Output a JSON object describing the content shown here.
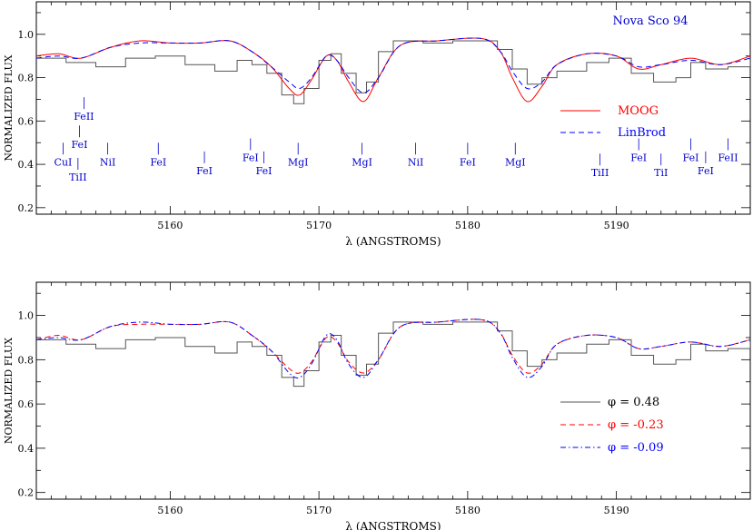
{
  "chart_data": [
    {
      "type": "line",
      "title": "Nova Sco 94",
      "xlabel": "λ (ANGSTROMS)",
      "ylabel": "NORMALIZED FLUX",
      "xlim": [
        5151,
        5199
      ],
      "ylim": [
        0.17,
        1.15
      ],
      "xticks": [
        5160,
        5170,
        5180,
        5190
      ],
      "yticks": [
        0.2,
        0.4,
        0.6,
        0.8,
        1.0
      ],
      "xtick_labels": [
        "5160",
        "5170",
        "5180",
        "5190"
      ],
      "ytick_labels": [
        "0.2",
        "0.4",
        "0.6",
        "0.8",
        "1.0"
      ],
      "legend_position": "right",
      "series": [
        {
          "name": "",
          "color": "#555555",
          "style": "step",
          "x": [
            5151,
            5153,
            5155,
            5157,
            5159,
            5161,
            5163,
            5164.5,
            5165.5,
            5166.5,
            5167.5,
            5168.3,
            5169,
            5170,
            5170.8,
            5171.5,
            5172.5,
            5173.2,
            5174,
            5175,
            5177,
            5179,
            5181,
            5182,
            5183,
            5184,
            5185,
            5186,
            5188,
            5189.5,
            5191,
            5192.5,
            5194,
            5195,
            5196,
            5197.5,
            5199
          ],
          "y": [
            0.89,
            0.87,
            0.85,
            0.89,
            0.9,
            0.86,
            0.83,
            0.88,
            0.86,
            0.82,
            0.72,
            0.68,
            0.75,
            0.88,
            0.91,
            0.82,
            0.73,
            0.78,
            0.92,
            0.97,
            0.96,
            0.97,
            0.97,
            0.93,
            0.84,
            0.77,
            0.8,
            0.83,
            0.87,
            0.89,
            0.82,
            0.78,
            0.8,
            0.87,
            0.84,
            0.85,
            0.88
          ]
        },
        {
          "name": "MOOG",
          "color": "#ff0000",
          "style": "solid",
          "x": [
            5151,
            5152.5,
            5154,
            5156,
            5158,
            5160,
            5162,
            5164,
            5165.5,
            5166.8,
            5168,
            5168.7,
            5169.5,
            5170.5,
            5171.2,
            5172,
            5173,
            5174,
            5175.5,
            5178,
            5181,
            5182.2,
            5183,
            5184,
            5185,
            5186,
            5188,
            5190,
            5191.5,
            5193,
            5195,
            5197,
            5199
          ],
          "y": [
            0.9,
            0.91,
            0.89,
            0.94,
            0.97,
            0.96,
            0.96,
            0.97,
            0.92,
            0.85,
            0.75,
            0.72,
            0.79,
            0.9,
            0.88,
            0.78,
            0.69,
            0.8,
            0.95,
            0.97,
            0.98,
            0.92,
            0.8,
            0.69,
            0.76,
            0.86,
            0.91,
            0.9,
            0.84,
            0.86,
            0.89,
            0.86,
            0.9
          ]
        },
        {
          "name": "LinBrod",
          "color": "#0000ff",
          "style": "dashed",
          "x": [
            5151,
            5152.5,
            5154,
            5156,
            5158,
            5160,
            5162,
            5164,
            5165.5,
            5166.8,
            5168,
            5168.7,
            5169.5,
            5170.5,
            5171.2,
            5172,
            5173,
            5174,
            5175.5,
            5178,
            5181,
            5182.2,
            5183,
            5184,
            5185,
            5186,
            5188,
            5190,
            5191.5,
            5193,
            5195,
            5197,
            5199
          ],
          "y": [
            0.89,
            0.9,
            0.89,
            0.94,
            0.96,
            0.96,
            0.96,
            0.97,
            0.92,
            0.85,
            0.78,
            0.75,
            0.8,
            0.9,
            0.88,
            0.8,
            0.73,
            0.8,
            0.95,
            0.97,
            0.98,
            0.92,
            0.83,
            0.75,
            0.78,
            0.86,
            0.91,
            0.9,
            0.85,
            0.86,
            0.88,
            0.86,
            0.89
          ]
        }
      ],
      "annotations": [
        {
          "text": "FeII",
          "x": 5154.2,
          "y": 0.63
        },
        {
          "text": "FeI",
          "x": 5153.9,
          "y": 0.5
        },
        {
          "text": "CuI",
          "x": 5152.8,
          "y": 0.42
        },
        {
          "text": "TiII",
          "x": 5153.8,
          "y": 0.35
        },
        {
          "text": "NiI",
          "x": 5155.8,
          "y": 0.42
        },
        {
          "text": "FeI",
          "x": 5159.2,
          "y": 0.42
        },
        {
          "text": "FeI",
          "x": 5162.3,
          "y": 0.38
        },
        {
          "text": "FeI",
          "x": 5165.4,
          "y": 0.44
        },
        {
          "text": "FeI",
          "x": 5166.3,
          "y": 0.38
        },
        {
          "text": "MgI",
          "x": 5168.6,
          "y": 0.42
        },
        {
          "text": "MgI",
          "x": 5172.9,
          "y": 0.42
        },
        {
          "text": "NiI",
          "x": 5176.5,
          "y": 0.42
        },
        {
          "text": "FeI",
          "x": 5180.0,
          "y": 0.42
        },
        {
          "text": "MgI",
          "x": 5183.2,
          "y": 0.42
        },
        {
          "text": "TiII",
          "x": 5188.9,
          "y": 0.37
        },
        {
          "text": "FeI",
          "x": 5191.5,
          "y": 0.44
        },
        {
          "text": "TiI",
          "x": 5193.0,
          "y": 0.37
        },
        {
          "text": "FeI",
          "x": 5195.0,
          "y": 0.44
        },
        {
          "text": "FeI",
          "x": 5196.0,
          "y": 0.38
        },
        {
          "text": "FeII",
          "x": 5197.5,
          "y": 0.44
        }
      ]
    },
    {
      "type": "line",
      "title": "",
      "xlabel": "λ (ANGSTROMS)",
      "ylabel": "NORMALIZED FLUX",
      "xlim": [
        5151,
        5199
      ],
      "ylim": [
        0.17,
        1.15
      ],
      "xticks": [
        5160,
        5170,
        5180,
        5190
      ],
      "yticks": [
        0.2,
        0.4,
        0.6,
        0.8,
        1.0
      ],
      "xtick_labels": [
        "5160",
        "5170",
        "5180",
        "5190"
      ],
      "ytick_labels": [
        "0.2",
        "0.4",
        "0.6",
        "0.8",
        "1.0"
      ],
      "legend_position": "bottom-right",
      "series": [
        {
          "name": "φ =  0.48",
          "color": "#555555",
          "style": "step",
          "x": [
            5151,
            5153,
            5155,
            5157,
            5159,
            5161,
            5163,
            5164.5,
            5165.5,
            5166.5,
            5167.5,
            5168.3,
            5169,
            5170,
            5170.8,
            5171.5,
            5172.5,
            5173.2,
            5174,
            5175,
            5177,
            5179,
            5181,
            5182,
            5183,
            5184,
            5185,
            5186,
            5188,
            5189.5,
            5191,
            5192.5,
            5194,
            5195,
            5196,
            5197.5,
            5199
          ],
          "y": [
            0.89,
            0.87,
            0.85,
            0.89,
            0.9,
            0.86,
            0.83,
            0.88,
            0.86,
            0.82,
            0.72,
            0.68,
            0.75,
            0.88,
            0.91,
            0.82,
            0.73,
            0.78,
            0.92,
            0.97,
            0.96,
            0.97,
            0.97,
            0.93,
            0.84,
            0.77,
            0.8,
            0.83,
            0.87,
            0.89,
            0.82,
            0.78,
            0.8,
            0.87,
            0.84,
            0.85,
            0.88
          ]
        },
        {
          "name": "φ = -0.23",
          "color": "#ff0000",
          "style": "dashed",
          "x": [
            5151,
            5152.5,
            5154,
            5156,
            5158,
            5160,
            5162,
            5164,
            5165.5,
            5166.8,
            5168,
            5168.7,
            5169.5,
            5170.5,
            5171.2,
            5172,
            5173,
            5174,
            5175.5,
            5178,
            5181,
            5182.2,
            5183,
            5184,
            5185,
            5186,
            5188,
            5190,
            5191.5,
            5193,
            5195,
            5197,
            5199
          ],
          "y": [
            0.89,
            0.91,
            0.89,
            0.95,
            0.96,
            0.96,
            0.96,
            0.97,
            0.91,
            0.84,
            0.76,
            0.74,
            0.79,
            0.9,
            0.88,
            0.79,
            0.74,
            0.8,
            0.95,
            0.97,
            0.98,
            0.92,
            0.82,
            0.74,
            0.78,
            0.87,
            0.91,
            0.9,
            0.85,
            0.86,
            0.88,
            0.86,
            0.89
          ]
        },
        {
          "name": "φ = -0.09",
          "color": "#0000ff",
          "style": "dashdot",
          "x": [
            5151,
            5152.5,
            5154,
            5156,
            5158,
            5160,
            5162,
            5164,
            5165.5,
            5166.8,
            5168,
            5168.7,
            5169.5,
            5170.5,
            5171.2,
            5172,
            5173,
            5174,
            5175.5,
            5178,
            5181,
            5182.2,
            5183,
            5184,
            5185,
            5186,
            5188,
            5190,
            5191.5,
            5193,
            5195,
            5197,
            5199
          ],
          "y": [
            0.89,
            0.9,
            0.89,
            0.95,
            0.97,
            0.96,
            0.96,
            0.97,
            0.91,
            0.84,
            0.74,
            0.72,
            0.78,
            0.91,
            0.89,
            0.78,
            0.72,
            0.8,
            0.95,
            0.97,
            0.98,
            0.92,
            0.81,
            0.72,
            0.77,
            0.87,
            0.91,
            0.9,
            0.85,
            0.86,
            0.88,
            0.86,
            0.89
          ]
        }
      ],
      "annotations": []
    }
  ]
}
